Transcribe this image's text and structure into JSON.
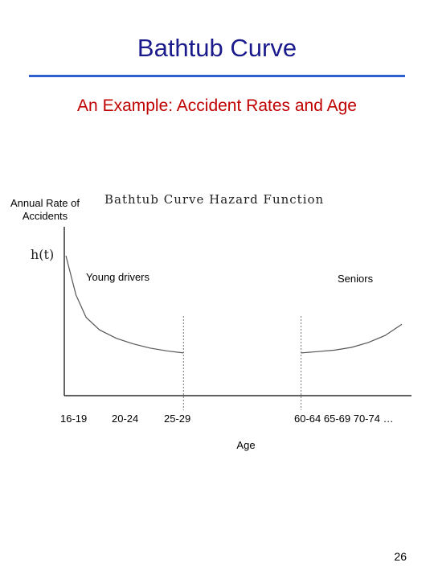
{
  "slide": {
    "title": "Bathtub Curve",
    "subtitle": "An Example: Accident Rates and Age",
    "page_number": "26"
  },
  "colors": {
    "title": "#1a1a8c",
    "title_rule": "#2e5fd0",
    "subtitle": "#c00000",
    "curve": "#555555"
  },
  "chart_data": {
    "type": "line",
    "title": "Bathtub Curve Hazard Function",
    "xlabel": "Age",
    "ylabel": "Annual Rate of Accidents",
    "y_symbol": "h(t)",
    "x_ticks": [
      "16-19",
      "20-24",
      "25-29",
      "60-64 65-69 70-74 …"
    ],
    "annotations": [
      {
        "text": "Young drivers",
        "near": "early-ages"
      },
      {
        "text": "Seniors",
        "near": "late-ages"
      }
    ],
    "grid": false,
    "x_axis_numeric_range": [
      0,
      100
    ],
    "y_axis_numeric_range": [
      0,
      100
    ],
    "series": [
      {
        "segment": "young",
        "x": [
          0,
          3,
          6,
          10,
          15,
          20,
          25,
          30,
          35
        ],
        "y": [
          100,
          72,
          56,
          47,
          41,
          37,
          34,
          32,
          30.5
        ]
      },
      {
        "segment": "seniors",
        "x": [
          70,
          75,
          80,
          85,
          90,
          95,
          100
        ],
        "y": [
          30.5,
          31.5,
          32.5,
          34.5,
          38,
          43,
          51
        ]
      }
    ],
    "dividers": [
      {
        "x": 35
      },
      {
        "x": 70
      }
    ]
  }
}
